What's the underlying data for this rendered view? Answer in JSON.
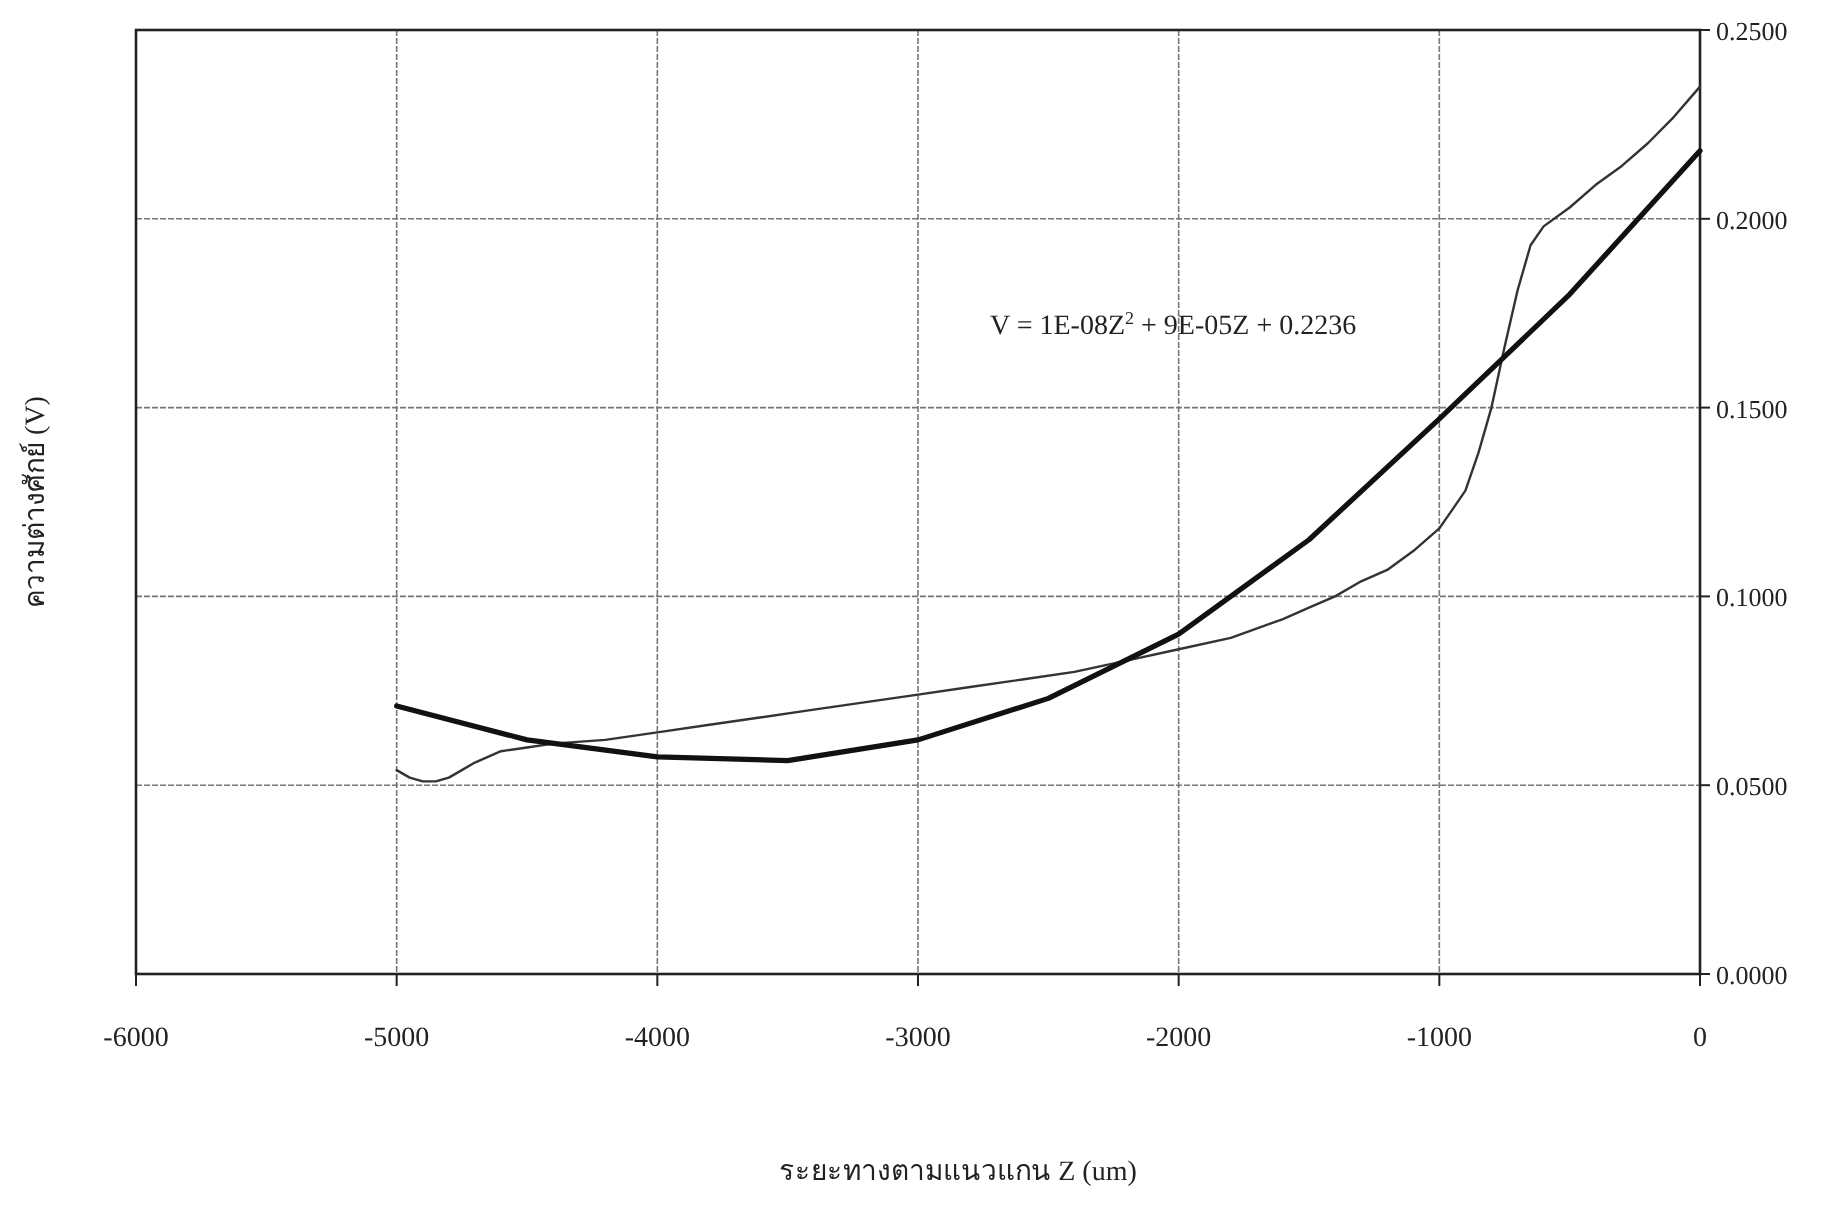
{
  "chart_data": {
    "type": "line",
    "xlabel": "ระยะทางตามแนวแกน Z (um)",
    "ylabel": "ความต่างศักย์ (V)",
    "xlim": [
      -6000,
      0
    ],
    "xticks": [
      -6000,
      -5000,
      -4000,
      -3000,
      -2000,
      -1000,
      0
    ],
    "ylim": [
      0,
      0.25
    ],
    "yticks": [
      {
        "value": 0,
        "label": "0.0000"
      },
      {
        "value": 0.05,
        "label": "0.0500"
      },
      {
        "value": 0.1,
        "label": "0.1000"
      },
      {
        "value": 0.15,
        "label": "0.1500"
      },
      {
        "value": 0.2,
        "label": "0.2000"
      },
      {
        "value": 0.25,
        "label": "0.2500"
      }
    ],
    "grid": true,
    "line_style": "solid",
    "marker": "none",
    "series": [
      {
        "color": "#333333",
        "x": [
          -5000,
          -4950,
          -4900,
          -4850,
          -4800,
          -4750,
          -4700,
          -4600,
          -4500,
          -4400,
          -4200,
          -4000,
          -3800,
          -3600,
          -3400,
          -3200,
          -3000,
          -2800,
          -2600,
          -2400,
          -2200,
          -2000,
          -1800,
          -1600,
          -1500,
          -1400,
          -1300,
          -1200,
          -1100,
          -1000,
          -950,
          -900,
          -850,
          -800,
          -750,
          -700,
          -650,
          -600,
          -500,
          -400,
          -300,
          -200,
          -100,
          0
        ],
        "values": [
          0.054,
          0.052,
          0.051,
          0.051,
          0.052,
          0.054,
          0.056,
          0.059,
          0.06,
          0.061,
          0.062,
          0.064,
          0.066,
          0.068,
          0.07,
          0.072,
          0.074,
          0.076,
          0.078,
          0.08,
          0.083,
          0.086,
          0.089,
          0.094,
          0.097,
          0.1,
          0.104,
          0.107,
          0.112,
          0.118,
          0.123,
          0.128,
          0.138,
          0.15,
          0.166,
          0.181,
          0.193,
          0.198,
          0.203,
          0.209,
          0.214,
          0.22,
          0.227,
          0.235
        ]
      },
      {
        "color": "#111111",
        "x": [
          -5000,
          -4500,
          -4000,
          -3500,
          -3000,
          -2500,
          -2000,
          -1500,
          -1000,
          -500,
          0
        ],
        "values": [
          0.071,
          0.062,
          0.0575,
          0.0565,
          0.062,
          0.073,
          0.09,
          0.115,
          0.147,
          0.18,
          0.218
        ]
      }
    ],
    "annotations": [
      "V = 1E-08Z$^{2}$ + 9E-05Z + 0.2236"
    ]
  }
}
